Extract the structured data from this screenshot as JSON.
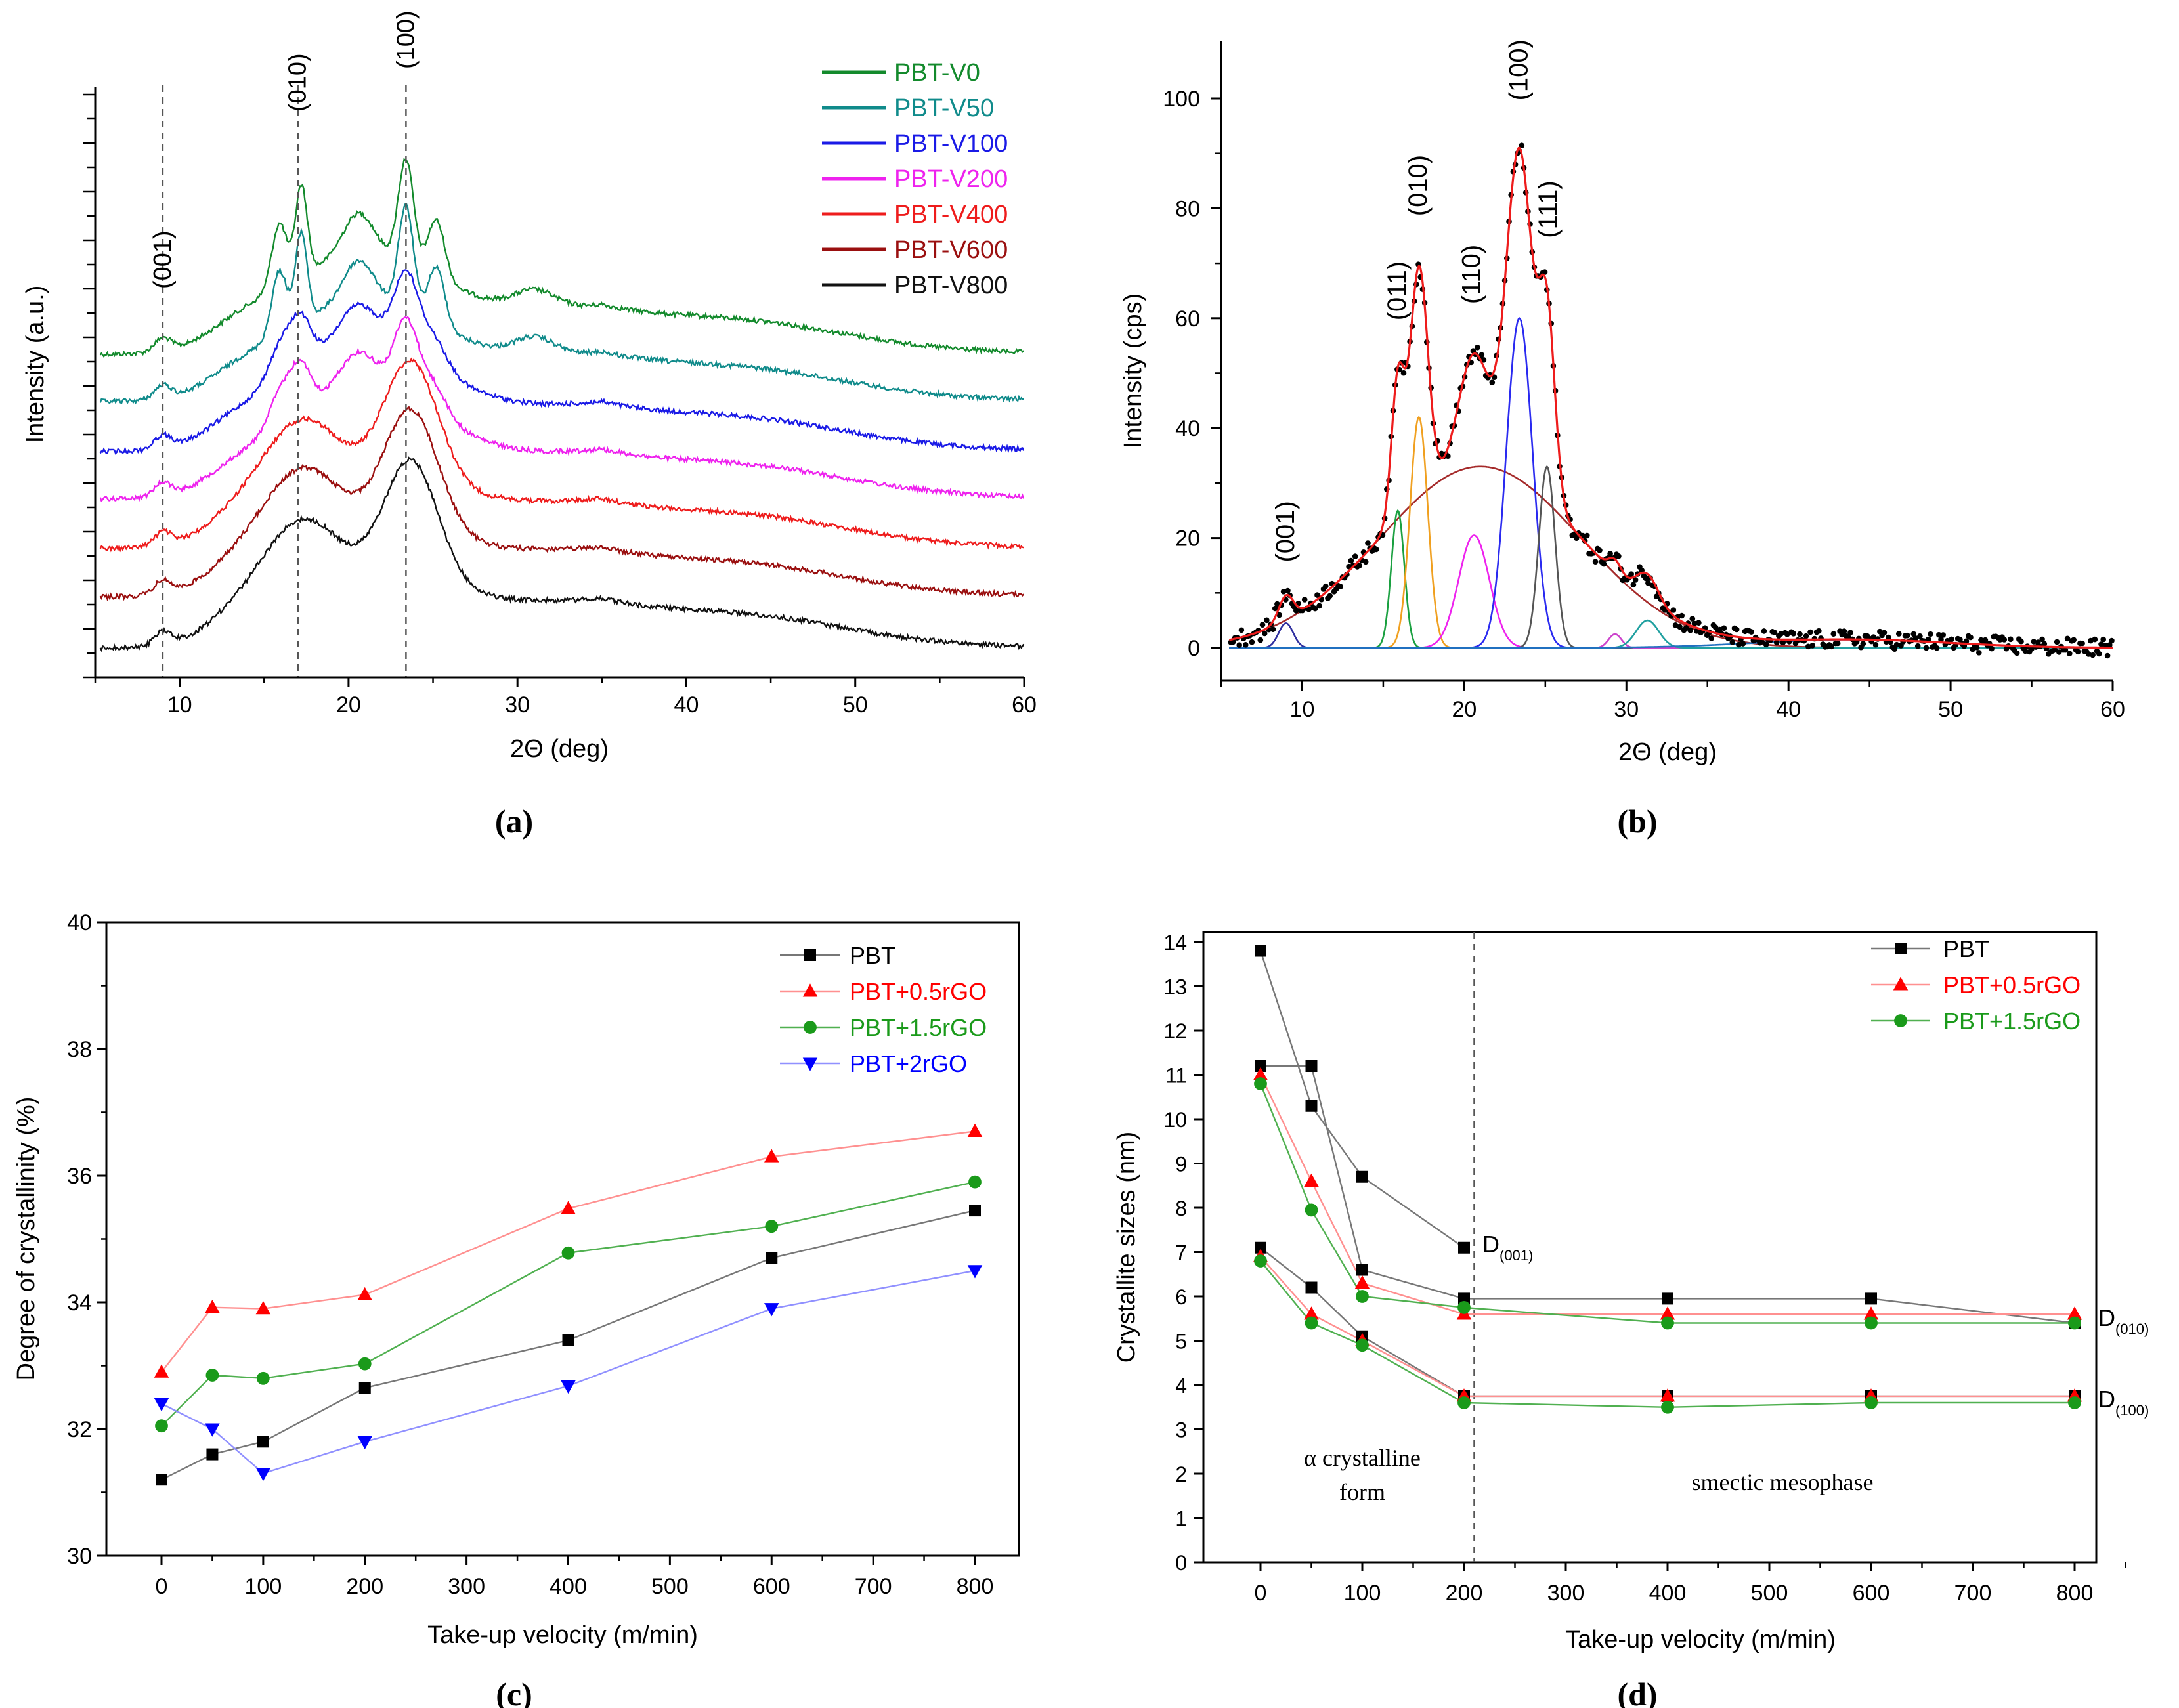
{
  "figure": {
    "panel_labels": [
      "(a)",
      "(b)",
      "(c)",
      "(d)"
    ]
  },
  "chart_data": [
    {
      "id": "a",
      "type": "line",
      "title": "",
      "xlabel": "2Θ (deg)",
      "ylabel": "Intensity (a.u.)",
      "xlim": [
        5,
        60
      ],
      "xticks": [
        10,
        20,
        30,
        40,
        50,
        60
      ],
      "y_tick_labels": false,
      "reference_lines": [
        {
          "x": 9.0,
          "label": "(001)"
        },
        {
          "x": 17.0,
          "label": "(010)"
        },
        {
          "x": 23.4,
          "label": "(100)"
        }
      ],
      "legend_position": "top-right",
      "series": [
        {
          "name": "PBT-V0",
          "color": "#138a2c",
          "profile": "sharp"
        },
        {
          "name": "PBT-V50",
          "color": "#108b8b",
          "profile": "sharp"
        },
        {
          "name": "PBT-V100",
          "color": "#1a1ae6",
          "profile": "medium"
        },
        {
          "name": "PBT-V200",
          "color": "#ee22ee",
          "profile": "medium"
        },
        {
          "name": "PBT-V400",
          "color": "#ee1c1c",
          "profile": "broad"
        },
        {
          "name": "PBT-V600",
          "color": "#9a0f0f",
          "profile": "broad"
        },
        {
          "name": "PBT-V800",
          "color": "#111111",
          "profile": "broad"
        }
      ]
    },
    {
      "id": "b",
      "type": "line",
      "title": "",
      "xlabel": "2Θ (deg)",
      "ylabel": "Intensity (cps)",
      "xlim": [
        5,
        60
      ],
      "ylim": [
        -5,
        110
      ],
      "xticks": [
        10,
        20,
        30,
        40,
        50,
        60
      ],
      "yticks": [
        0,
        20,
        40,
        60,
        80,
        100
      ],
      "peak_labels": [
        {
          "label": "(001)",
          "x": 9.0,
          "y": 12
        },
        {
          "label": "(011)",
          "x": 15.9,
          "y": 56
        },
        {
          "label": "(010)",
          "x": 17.2,
          "y": 75
        },
        {
          "label": "(110)",
          "x": 20.5,
          "y": 59
        },
        {
          "label": "(100)",
          "x": 23.4,
          "y": 96
        },
        {
          "label": "(111)",
          "x": 25.2,
          "y": 71
        }
      ],
      "components": [
        {
          "name": "amorphous halo",
          "color": "#a52a2a",
          "center": 21,
          "height": 33,
          "width": 6.2
        },
        {
          "name": "(001)",
          "color": "#2f2f9f",
          "center": 9.0,
          "height": 4.5,
          "width": 0.45
        },
        {
          "name": "(011)",
          "color": "#1aa040",
          "center": 15.9,
          "height": 25,
          "width": 0.4
        },
        {
          "name": "(010)",
          "color": "#f0a020",
          "center": 17.2,
          "height": 42,
          "width": 0.55
        },
        {
          "name": "(110)",
          "color": "#ee22ee",
          "center": 20.6,
          "height": 20.5,
          "width": 0.95
        },
        {
          "name": "(100)",
          "color": "#2a2af0",
          "center": 23.4,
          "height": 60,
          "width": 0.8
        },
        {
          "name": "(111)",
          "color": "#555555",
          "center": 25.1,
          "height": 33,
          "width": 0.5
        },
        {
          "name": "minor 29",
          "color": "#cc44cc",
          "center": 29.3,
          "height": 2.5,
          "width": 0.4
        },
        {
          "name": "minor 31",
          "color": "#20a0a0",
          "center": 31.3,
          "height": 5,
          "width": 0.7
        },
        {
          "name": "broad 45",
          "color": "#2070c0",
          "center": 44,
          "height": 1.5,
          "width": 6
        }
      ],
      "series": [
        {
          "name": "experimental",
          "style": "dots",
          "color": "#000000"
        },
        {
          "name": "fit",
          "style": "line",
          "color": "#ee1c1c"
        }
      ]
    },
    {
      "id": "c",
      "type": "line",
      "title": "",
      "xlabel": "Take-up velocity (m/min)",
      "ylabel": "Degree of crystallinity (%)",
      "xlim": [
        -60,
        850
      ],
      "ylim": [
        30,
        40
      ],
      "xticks": [
        0,
        100,
        200,
        300,
        400,
        500,
        600,
        700,
        800
      ],
      "yticks": [
        30,
        32,
        34,
        36,
        38,
        40
      ],
      "legend_position": "top-right",
      "x": [
        0,
        50,
        100,
        200,
        400,
        600,
        800
      ],
      "series": [
        {
          "name": "PBT",
          "color": "#000000",
          "line_color": "#777777",
          "marker": "square",
          "values": [
            31.2,
            31.6,
            31.8,
            32.65,
            33.4,
            34.7,
            35.45
          ]
        },
        {
          "name": "PBT+0.5rGO",
          "color": "#ff0000",
          "line_color": "#ff9090",
          "marker": "triangle-up",
          "values": [
            32.9,
            33.92,
            33.9,
            34.12,
            35.48,
            36.3,
            36.7
          ]
        },
        {
          "name": "PBT+1.5rGO",
          "color": "#1a9a1a",
          "line_color": "#50b050",
          "marker": "circle",
          "values": [
            32.05,
            32.85,
            32.8,
            33.03,
            34.78,
            35.2,
            35.9
          ]
        },
        {
          "name": "PBT+2rGO",
          "color": "#0000ff",
          "line_color": "#9090ff",
          "marker": "triangle-down",
          "values": [
            32.4,
            32.0,
            31.3,
            31.8,
            32.68,
            33.9,
            34.5
          ]
        }
      ]
    },
    {
      "id": "d",
      "type": "line",
      "title": "",
      "xlabel": "Take-up velocity (m/min)",
      "ylabel": "Crystallite sizes (nm)",
      "xlim": [
        -60,
        860
      ],
      "ylim": [
        0,
        14
      ],
      "xticks": [
        0,
        100,
        200,
        300,
        400,
        500,
        600,
        700,
        800
      ],
      "yticks": [
        0,
        1,
        2,
        3,
        4,
        5,
        6,
        7,
        8,
        9,
        10,
        11,
        12,
        13,
        14
      ],
      "legend_position": "top-right",
      "divider_x": 210,
      "region_labels": [
        {
          "text_lines": [
            "α crystalline",
            "form"
          ]
        },
        {
          "text_lines": [
            "smectic mesophase"
          ]
        }
      ],
      "series_labels": [
        {
          "base": "D",
          "sub": "(001)"
        },
        {
          "base": "D",
          "sub": "(010)"
        },
        {
          "base": "D",
          "sub": "(100)"
        }
      ],
      "legend": [
        {
          "name": "PBT",
          "color": "#000000",
          "marker": "square"
        },
        {
          "name": "PBT+0.5rGO",
          "color": "#ff0000",
          "marker": "triangle-up"
        },
        {
          "name": "PBT+1.5rGO",
          "color": "#1a9a1a",
          "marker": "circle"
        }
      ],
      "series": [
        {
          "name": "PBT D(001)",
          "sample": "PBT",
          "reflection": "(001)",
          "x": [
            0,
            50,
            100,
            200
          ],
          "values": [
            13.8,
            10.3,
            8.7,
            7.1
          ],
          "color": "#000000",
          "line_color": "#777777",
          "marker": "square"
        },
        {
          "name": "PBT D(010)",
          "sample": "PBT",
          "reflection": "(010)",
          "x": [
            0,
            50,
            100,
            200,
            400,
            600,
            800
          ],
          "values": [
            11.2,
            11.2,
            6.6,
            5.95,
            5.95,
            5.95,
            5.4
          ],
          "color": "#000000",
          "line_color": "#777777",
          "marker": "square"
        },
        {
          "name": "PBT D(100)",
          "sample": "PBT",
          "reflection": "(100)",
          "x": [
            0,
            50,
            100,
            200,
            400,
            600,
            800
          ],
          "values": [
            7.1,
            6.2,
            5.1,
            3.75,
            3.75,
            3.75,
            3.75
          ],
          "color": "#000000",
          "line_color": "#777777",
          "marker": "square"
        },
        {
          "name": "PBT+0.5rGO D(010)",
          "sample": "PBT+0.5rGO",
          "reflection": "(010)",
          "x": [
            0,
            50,
            100,
            200,
            400,
            600,
            800
          ],
          "values": [
            11.0,
            8.6,
            6.3,
            5.6,
            5.6,
            5.6,
            5.6
          ],
          "color": "#ff0000",
          "line_color": "#ff9090",
          "marker": "triangle-up"
        },
        {
          "name": "PBT+0.5rGO D(100)",
          "sample": "PBT+0.5rGO",
          "reflection": "(100)",
          "x": [
            0,
            50,
            100,
            200,
            400,
            600,
            800
          ],
          "values": [
            6.9,
            5.6,
            5.0,
            3.75,
            3.75,
            3.75,
            3.75
          ],
          "color": "#ff0000",
          "line_color": "#ff9090",
          "marker": "triangle-up"
        },
        {
          "name": "PBT+1.5rGO D(010)",
          "sample": "PBT+1.5rGO",
          "reflection": "(010)",
          "x": [
            0,
            50,
            100,
            200,
            400,
            600,
            800
          ],
          "values": [
            10.8,
            7.95,
            6.0,
            5.75,
            5.4,
            5.4,
            5.4
          ],
          "color": "#1a9a1a",
          "line_color": "#50b050",
          "marker": "circle"
        },
        {
          "name": "PBT+1.5rGO D(100)",
          "sample": "PBT+1.5rGO",
          "reflection": "(100)",
          "x": [
            0,
            50,
            100,
            200,
            400,
            600,
            800
          ],
          "values": [
            6.8,
            5.4,
            4.9,
            3.6,
            3.5,
            3.6,
            3.6
          ],
          "color": "#1a9a1a",
          "line_color": "#50b050",
          "marker": "circle"
        }
      ]
    }
  ]
}
